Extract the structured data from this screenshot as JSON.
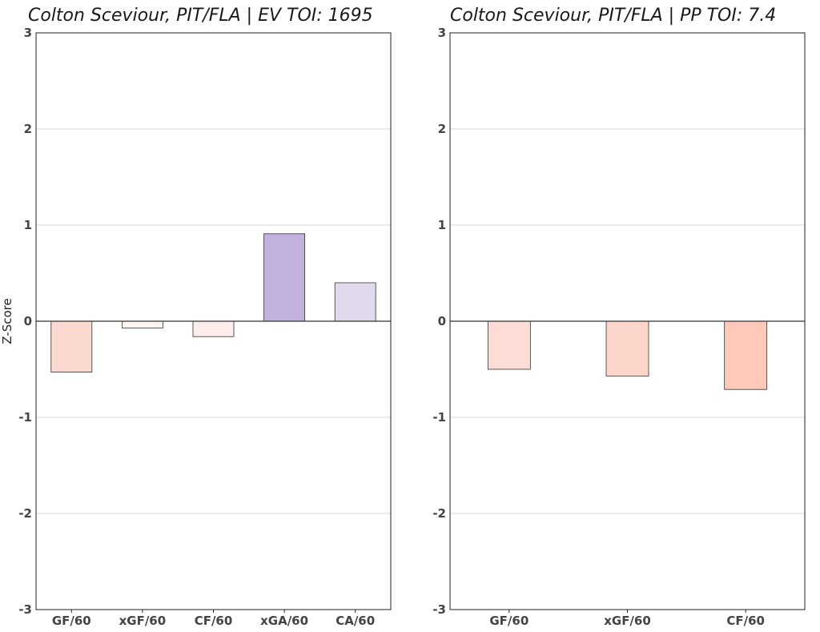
{
  "chart_data": [
    {
      "type": "bar",
      "title": "Colton Sceviour, PIT/FLA  |  EV TOI: 1695",
      "xlabel": "",
      "ylabel": "Z-Score",
      "ylim": [
        -3,
        3
      ],
      "yticks": [
        3,
        2,
        1,
        0,
        -1,
        -2,
        -3
      ],
      "grid": true,
      "categories": [
        "GF/60",
        "xGF/60",
        "CF/60",
        "xGA/60",
        "CA/60"
      ],
      "values": [
        -0.53,
        -0.07,
        -0.16,
        0.91,
        0.4
      ],
      "colors": [
        "#fcd9d0",
        "#fff5f3",
        "#fdeeeb",
        "#c2b0dd",
        "#e1daee"
      ]
    },
    {
      "type": "bar",
      "title": "Colton Sceviour, PIT/FLA  |  PP TOI: 7.4",
      "xlabel": "",
      "ylabel": "",
      "ylim": [
        -3,
        3
      ],
      "yticks": [
        3,
        2,
        1,
        0,
        -1,
        -2,
        -3
      ],
      "grid": true,
      "categories": [
        "GF/60",
        "xGF/60",
        "CF/60"
      ],
      "values": [
        -0.5,
        -0.57,
        -0.71
      ],
      "colors": [
        "#fcddd5",
        "#fcd6cb",
        "#fcc9bb"
      ]
    }
  ]
}
